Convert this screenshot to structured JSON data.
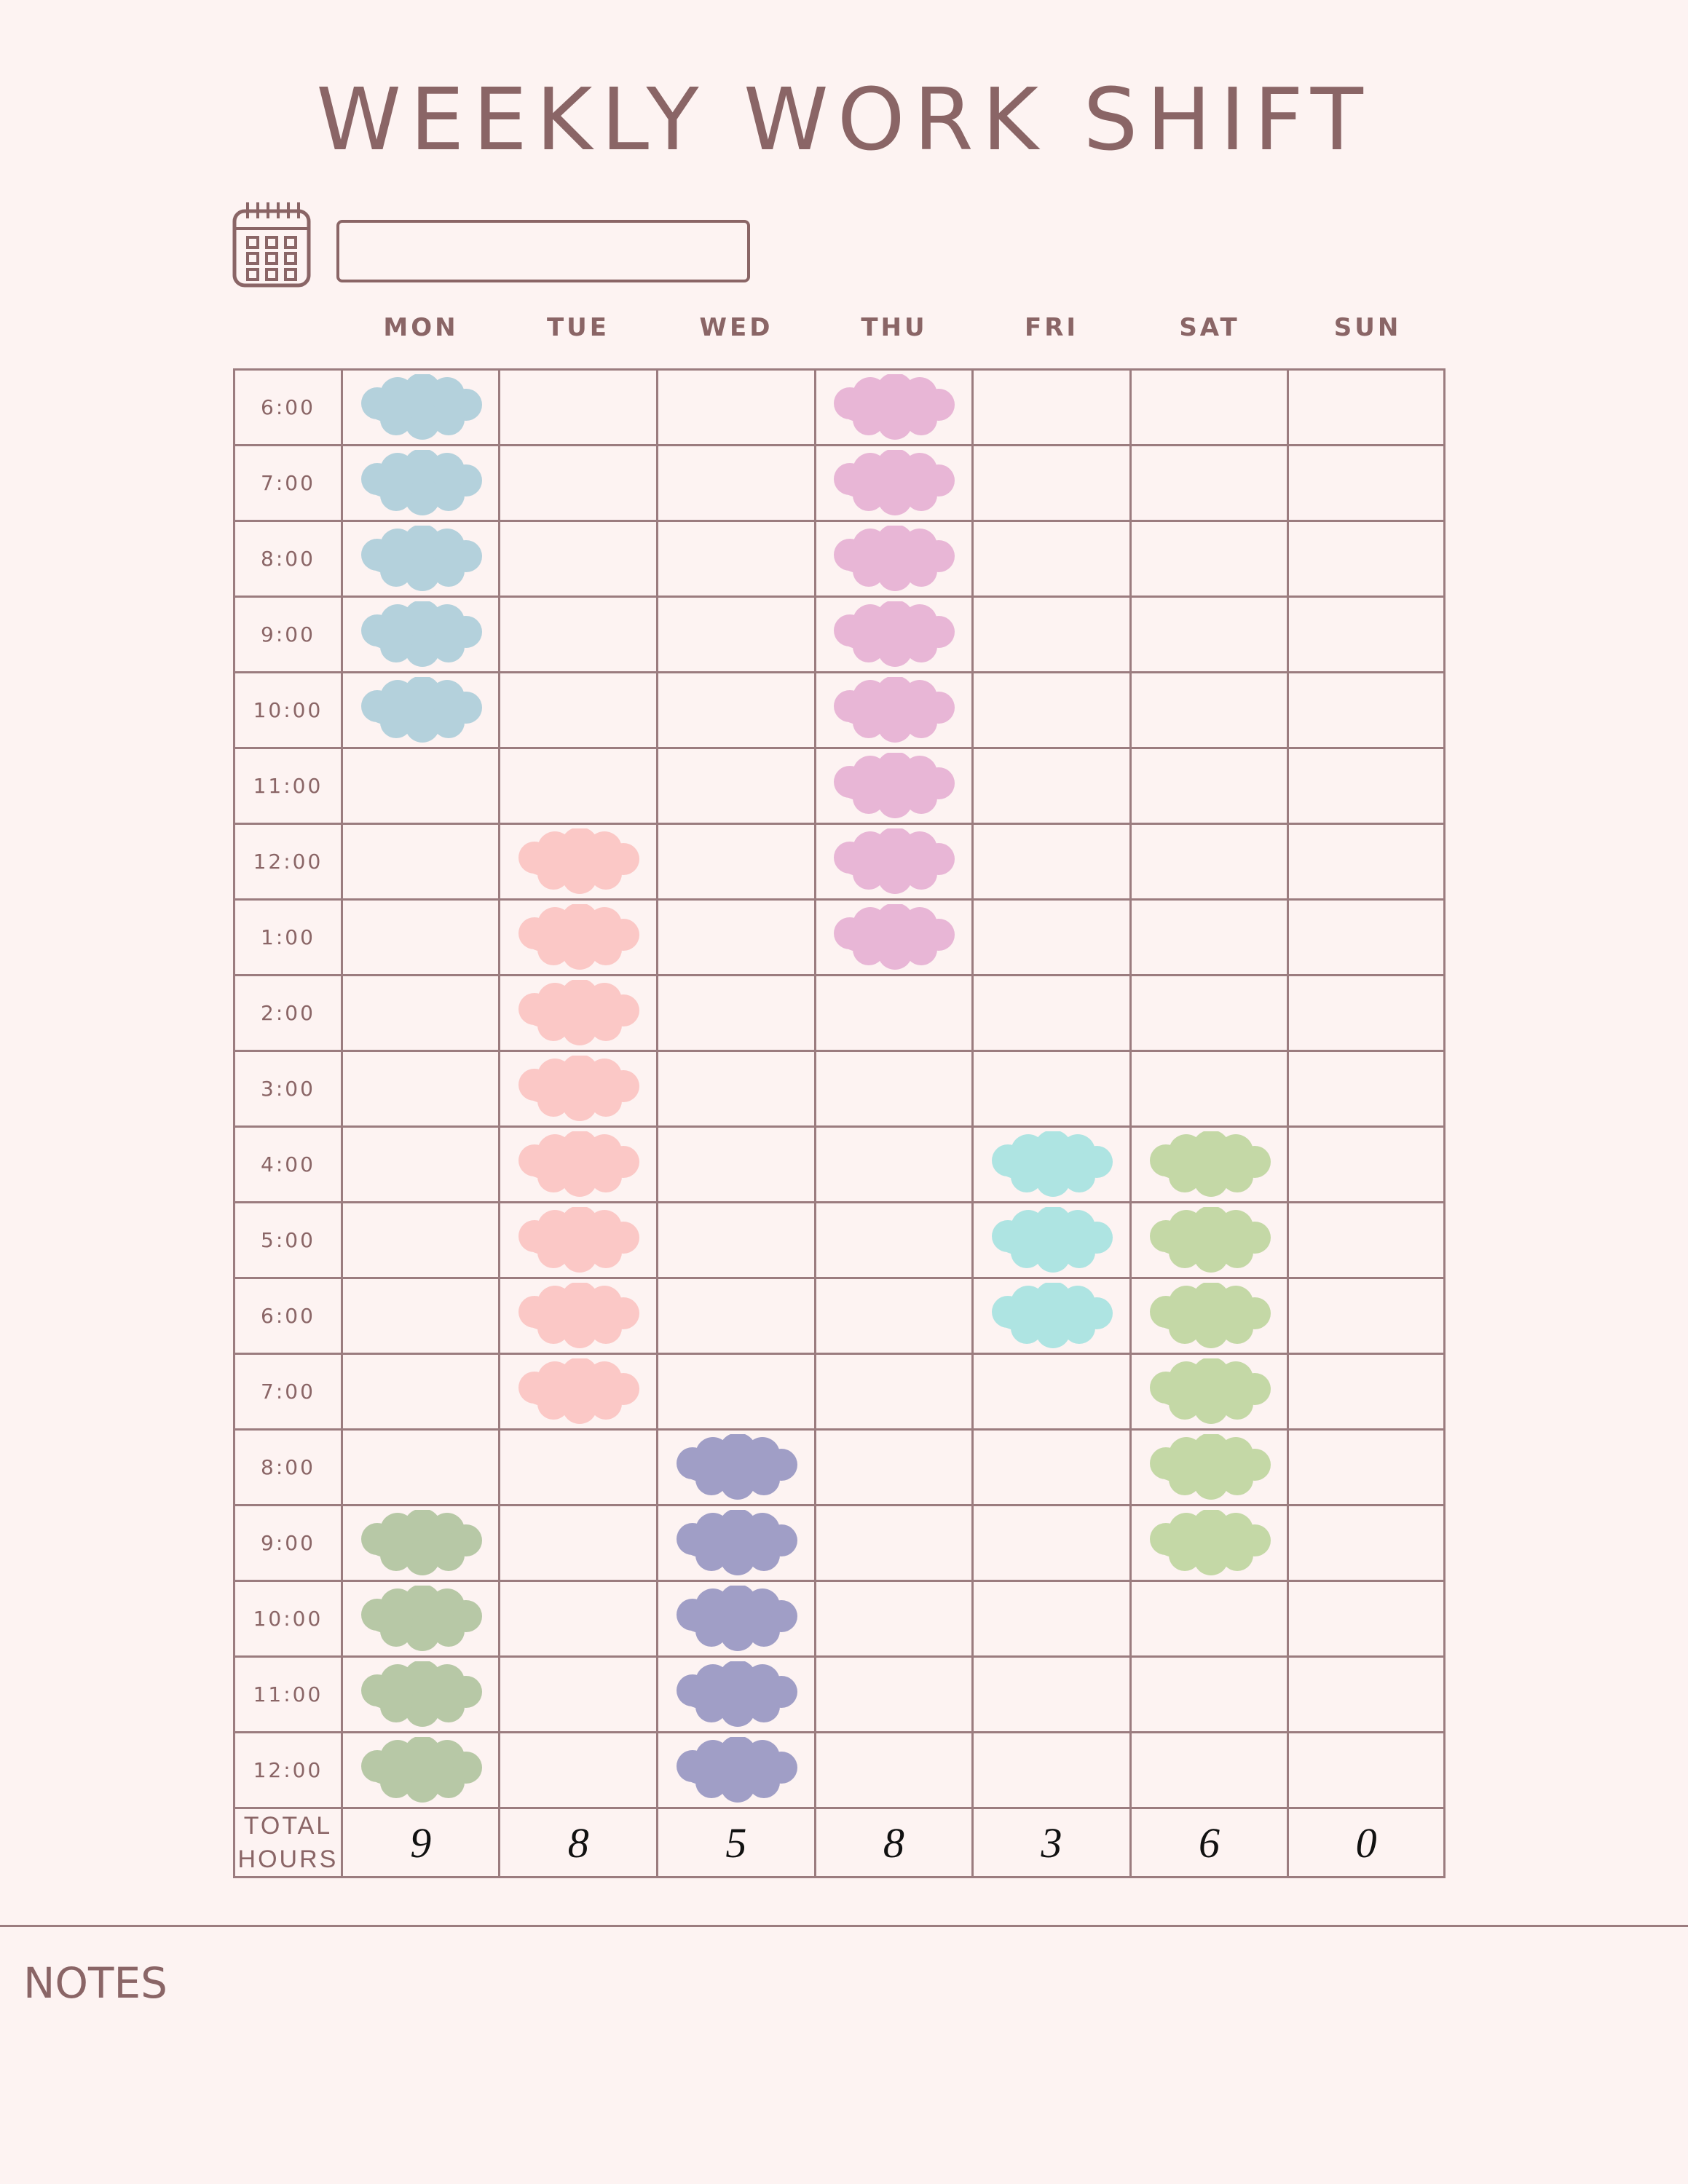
{
  "title": "WEEKLY WORK SHIFT",
  "date_field": {
    "value": ""
  },
  "days": [
    "MON",
    "TUE",
    "WED",
    "THU",
    "FRI",
    "SAT",
    "SUN"
  ],
  "times": [
    "6:00",
    "7:00",
    "8:00",
    "9:00",
    "10:00",
    "11:00",
    "12:00",
    "1:00",
    "2:00",
    "3:00",
    "4:00",
    "5:00",
    "6:00",
    "7:00",
    "8:00",
    "9:00",
    "10:00",
    "11:00",
    "12:00"
  ],
  "shift_colors": {
    "mon_morning": "#b4d1dc",
    "tue": "#fbc8c6",
    "wed": "#a09ec6",
    "thu": "#e8b6d6",
    "fri": "#aee4e2",
    "sat": "#c4d8a6",
    "mon_evening": "#b7c8a6"
  },
  "shifts": {
    "MON": [
      1,
      1,
      1,
      1,
      1,
      0,
      0,
      0,
      0,
      0,
      0,
      0,
      0,
      0,
      0,
      1,
      1,
      1,
      1
    ],
    "TUE": [
      0,
      0,
      0,
      0,
      0,
      0,
      1,
      1,
      1,
      1,
      1,
      1,
      1,
      1,
      0,
      0,
      0,
      0,
      0
    ],
    "WED": [
      0,
      0,
      0,
      0,
      0,
      0,
      0,
      0,
      0,
      0,
      0,
      0,
      0,
      0,
      1,
      1,
      1,
      1,
      1
    ],
    "THU": [
      1,
      1,
      1,
      1,
      1,
      1,
      1,
      1,
      0,
      0,
      0,
      0,
      0,
      0,
      0,
      0,
      0,
      0,
      0
    ],
    "FRI": [
      0,
      0,
      0,
      0,
      0,
      0,
      0,
      0,
      0,
      0,
      1,
      1,
      1,
      0,
      0,
      0,
      0,
      0,
      0
    ],
    "SAT": [
      0,
      0,
      0,
      0,
      0,
      0,
      0,
      0,
      0,
      0,
      1,
      1,
      1,
      1,
      1,
      1,
      0,
      0,
      0
    ],
    "SUN": [
      0,
      0,
      0,
      0,
      0,
      0,
      0,
      0,
      0,
      0,
      0,
      0,
      0,
      0,
      0,
      0,
      0,
      0,
      0
    ]
  },
  "total": {
    "label_line1": "TOTAL",
    "label_line2": "HOURS",
    "values": [
      "9",
      "8",
      "5",
      "8",
      "3",
      "6",
      "0"
    ]
  },
  "notes": {
    "label": "NOTES"
  }
}
